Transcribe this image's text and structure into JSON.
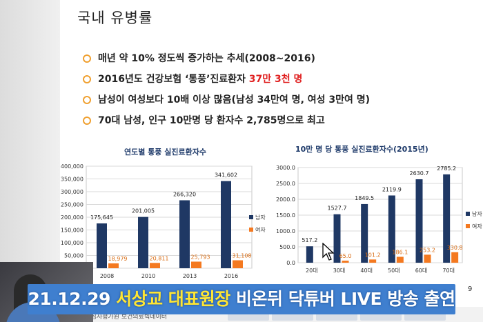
{
  "slide": {
    "title": "국내 유병률",
    "page_number": "9",
    "bullets": [
      {
        "parts": [
          {
            "text": "매년 약 10% 정도씩 증가하는 추세(2008~2016)",
            "emphasis": false
          }
        ]
      },
      {
        "parts": [
          {
            "text": "2016년도 건강보험 ‘통풍’진료환자 ",
            "emphasis": false
          },
          {
            "text": "37만 3천 명",
            "emphasis": true
          }
        ]
      },
      {
        "parts": [
          {
            "text": "남성이 여성보다 10배 이상 많음(남성 34만여 명, 여성 3만여 명)",
            "emphasis": false
          }
        ]
      },
      {
        "parts": [
          {
            "text": "70대 남성, 인구 10만명 당 환자수 2,785명으로 최고",
            "emphasis": false
          }
        ]
      }
    ],
    "footer_source": "보험심사평가원 보건의료빅데이터"
  },
  "chart_data": [
    {
      "type": "bar",
      "title": "연도별 통풍 실진료환자수",
      "categories": [
        "2008",
        "2010",
        "2013",
        "2016"
      ],
      "series": [
        {
          "name": "남자",
          "values": [
            175645,
            201005,
            266320,
            341602
          ],
          "labels": [
            "175,645",
            "201,005",
            "266,320",
            "341,602"
          ],
          "color": "#1f3864"
        },
        {
          "name": "여자",
          "values": [
            18979,
            20811,
            25793,
            31108
          ],
          "labels": [
            "18,979",
            "20,811",
            "25,793",
            "31,108"
          ],
          "color": "#f47920"
        }
      ],
      "ylim": [
        0,
        400000
      ],
      "yticks": [
        0,
        50000,
        100000,
        150000,
        200000,
        250000,
        300000,
        350000,
        400000
      ],
      "ytick_labels": [
        "0",
        "50,000",
        "100,000",
        "150,000",
        "200,000",
        "250,000",
        "300,000",
        "350,000",
        "400,000"
      ],
      "grid": true,
      "legend": "right"
    },
    {
      "type": "bar",
      "title": "10만 명 당 통풍 실진료환자수(2015년)",
      "categories": [
        "20대",
        "30대",
        "40대",
        "50대",
        "60대",
        "70대"
      ],
      "series": [
        {
          "name": "남자",
          "values": [
            517.2,
            1527.7,
            1849.5,
            2119.9,
            2630.7,
            2785.2
          ],
          "labels": [
            "517.2",
            "1527.7",
            "1849.5",
            "2119.9",
            "2630.7",
            "2785.2"
          ],
          "color": "#1f3864"
        },
        {
          "name": "여자",
          "values": [
            0,
            65.0,
            101.2,
            186.1,
            253.2,
            330.8
          ],
          "labels": [
            "",
            "65.0",
            "101.2",
            "186.1",
            "253.2",
            "330.8"
          ],
          "color": "#f47920"
        }
      ],
      "ylim": [
        0,
        3000
      ],
      "yticks": [
        0,
        500,
        1000,
        1500,
        2000,
        2500,
        3000
      ],
      "ytick_labels": [
        "0.0",
        "500.0",
        "1000.0",
        "1500.0",
        "2000.0",
        "2500.0",
        "3000.0"
      ],
      "grid": true,
      "legend": "right"
    }
  ],
  "caption": {
    "parts": [
      {
        "text": "21.12.29 ",
        "highlight": false
      },
      {
        "text": "서상교 대표원장",
        "highlight": true
      },
      {
        "text": " 비온뒤 닥튜버 LIVE 방송 출연",
        "highlight": false
      }
    ]
  },
  "colors": {
    "accent_ring": "#f0a030",
    "emphasis_red": "#e02020",
    "caption_bg": "#3f7fcf",
    "caption_highlight": "#ffe633"
  }
}
